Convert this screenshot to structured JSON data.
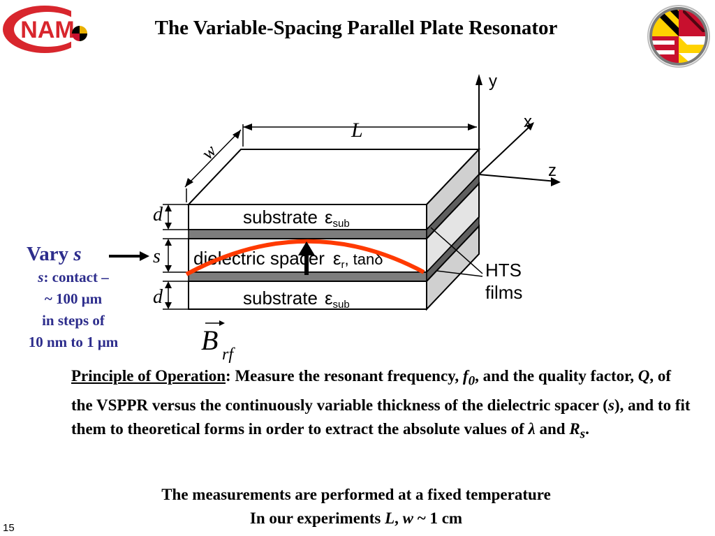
{
  "slide": {
    "title": "The Variable-Spacing Parallel Plate Resonator",
    "page_number": "15",
    "logos": {
      "left_text": "NAM"
    }
  },
  "diagram": {
    "labels": {
      "L": "L",
      "w": "w",
      "d_top": "d",
      "s": "s",
      "d_bottom": "d",
      "x": "x",
      "y": "y",
      "z": "z",
      "substrate_top": "substrate",
      "eps_top": "ε",
      "sub_top": "sub",
      "spacer": "dielectric spacer",
      "eps_r": "ε",
      "r": "r",
      "tan": ", tanδ",
      "substrate_bottom": "substrate",
      "eps_bottom": "ε",
      "sub_bottom": "sub",
      "hts_line1": "HTS",
      "hts_line2": "films"
    },
    "colors": {
      "field_curve": "#ff3a00",
      "hts_film": "#7d7d7d",
      "label_blue": "#2d2d8c"
    }
  },
  "vary": {
    "label_prefix": "Vary",
    "label_var": "s",
    "note_var": "s",
    "note_line1": ": contact –",
    "note_line2": "~ 100 μm",
    "note_line3": "in steps of",
    "note_line4": "10 nm to 1 μm"
  },
  "field": {
    "symbol": "B",
    "subscript": "rf"
  },
  "principle": {
    "heading": "Principle of Operation",
    "t1": ": Measure the resonant frequency, ",
    "f": "f",
    "f_sub": "0",
    "t2": ", and the quality factor, ",
    "Q": "Q",
    "t3": ", of the VSPPR versus the continuously variable thickness of the dielectric spacer (",
    "s": "s",
    "t4": "), and to fit them to theoretical forms in order to extract the absolute values of ",
    "lambda": "λ",
    "t5": " and ",
    "R": "R",
    "R_sub": "s",
    "t6": "."
  },
  "footer": {
    "line1": "The measurements are performed at a fixed temperature",
    "line2_prefix": "In our experiments ",
    "L": "L",
    "comma": ", ",
    "w": "w",
    "line2_suffix": " ~ 1 cm"
  }
}
